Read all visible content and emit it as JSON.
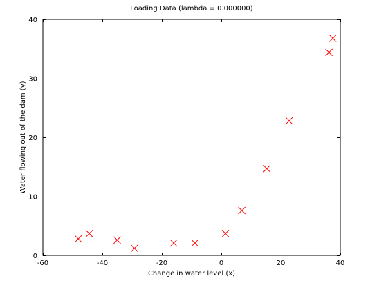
{
  "chart_data": {
    "type": "scatter",
    "title": "Loading Data (lambda = 0.000000)",
    "xlabel": "Change in water level (x)",
    "ylabel": "Water flowing out of the dam (y)",
    "xlim": [
      -60,
      40
    ],
    "ylim": [
      0,
      40
    ],
    "xticks": [
      -60,
      -40,
      -20,
      0,
      20,
      40
    ],
    "yticks": [
      0,
      10,
      20,
      30,
      40
    ],
    "xtick_labels": [
      "-60",
      "-40",
      "-20",
      "0",
      "20",
      "40"
    ],
    "ytick_labels": [
      "0",
      "10",
      "20",
      "30",
      "40"
    ],
    "marker": "x",
    "marker_color": "#ff0000",
    "grid": false,
    "points": [
      {
        "x": -48.1,
        "y": 2.8
      },
      {
        "x": -44.4,
        "y": 3.7
      },
      {
        "x": -35.0,
        "y": 2.6
      },
      {
        "x": -29.2,
        "y": 1.2
      },
      {
        "x": -16.0,
        "y": 2.1
      },
      {
        "x": -8.9,
        "y": 2.1
      },
      {
        "x": 1.4,
        "y": 3.7
      },
      {
        "x": 6.9,
        "y": 7.6
      },
      {
        "x": 15.3,
        "y": 14.7
      },
      {
        "x": 22.8,
        "y": 22.8
      },
      {
        "x": 36.2,
        "y": 34.4
      },
      {
        "x": 37.5,
        "y": 36.8
      }
    ]
  }
}
